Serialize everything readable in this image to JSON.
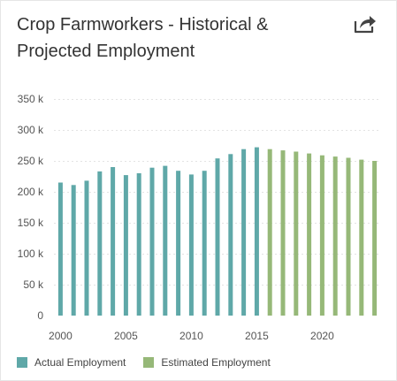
{
  "header": {
    "title_line1": "Crop Farmworkers - Historical &",
    "title_line2": "Projected Employment",
    "share_icon": "share-arrow-icon"
  },
  "chart_data": {
    "type": "bar",
    "title": "Crop Farmworkers - Historical & Projected Employment",
    "xlabel": "",
    "ylabel": "",
    "ylim": [
      0,
      350000
    ],
    "xlim": [
      1999.5,
      2024.5
    ],
    "y_ticks": [
      0,
      50000,
      100000,
      150000,
      200000,
      250000,
      300000,
      350000
    ],
    "y_tick_labels": [
      "0",
      "50 k",
      "100 k",
      "150 k",
      "200 k",
      "250 k",
      "300 k",
      "350 k"
    ],
    "x_ticks": [
      2000,
      2005,
      2010,
      2015,
      2020
    ],
    "x_tick_labels": [
      "2000",
      "2005",
      "2010",
      "2015",
      "2020"
    ],
    "grid": "horizontal dashed",
    "legend_position": "bottom-left",
    "series": [
      {
        "name": "Actual Employment",
        "color": "#5fa8a8",
        "x": [
          2000,
          2001,
          2002,
          2003,
          2004,
          2005,
          2006,
          2007,
          2008,
          2009,
          2010,
          2011,
          2012,
          2013,
          2014,
          2015
        ],
        "values": [
          215000,
          211000,
          218000,
          233000,
          240000,
          227000,
          230000,
          239000,
          242000,
          234000,
          228000,
          234000,
          254000,
          261000,
          269000,
          272000
        ]
      },
      {
        "name": "Estimated Employment",
        "color": "#96b878",
        "x": [
          2016,
          2017,
          2018,
          2019,
          2020,
          2021,
          2022,
          2023,
          2024
        ],
        "values": [
          269000,
          267000,
          265000,
          262000,
          259000,
          257000,
          255000,
          252000,
          250000
        ]
      }
    ]
  }
}
